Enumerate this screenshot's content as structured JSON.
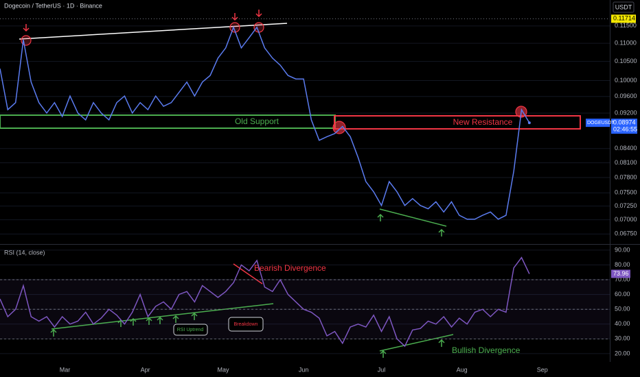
{
  "chart_data": [
    {
      "type": "line",
      "title": "Dogecoin / TetherUS · 1D · Binance",
      "currency": "USDT",
      "log": true,
      "xlim": [
        0,
        235
      ],
      "ylim": [
        0.0659,
        0.1229
      ],
      "yticks": [
        {
          "value": 0.115,
          "label": "0.11500"
        },
        {
          "value": 0.11,
          "label": "0.11000"
        },
        {
          "value": 0.105,
          "label": "0.10500"
        },
        {
          "value": 0.1,
          "label": "0.10000"
        },
        {
          "value": 0.096,
          "label": "0.09600"
        },
        {
          "value": 0.092,
          "label": "0.09200"
        },
        {
          "value": 0.084,
          "label": "0.08400"
        },
        {
          "value": 0.081,
          "label": "0.08100"
        },
        {
          "value": 0.078,
          "label": "0.07800"
        },
        {
          "value": 0.075,
          "label": "0.07500"
        },
        {
          "value": 0.0725,
          "label": "0.07250"
        },
        {
          "value": 0.07,
          "label": "0.07000"
        },
        {
          "value": 0.0675,
          "label": "0.06750"
        }
      ],
      "high_price": 0.11714,
      "countdown": "02:46:55",
      "x": [
        0,
        3,
        6,
        9,
        12,
        15,
        18,
        21,
        24,
        27,
        30,
        33,
        36,
        39,
        42,
        45,
        48,
        51,
        54,
        57,
        60,
        63,
        66,
        69,
        72,
        75,
        78,
        81,
        84,
        87,
        90,
        93,
        96,
        99,
        102,
        105,
        108,
        111,
        114,
        117,
        120,
        123,
        126,
        129,
        132,
        135,
        138,
        141,
        144,
        147,
        150,
        153,
        156,
        159,
        162,
        165,
        168,
        171,
        174,
        177,
        180,
        183,
        186,
        189,
        192,
        195,
        198,
        201,
        204
      ],
      "series": [
        {
          "name": "DOGEUSDT",
          "color": "#5b7cf0",
          "values": [
            0.1031,
            0.0928,
            0.0945,
            0.111,
            0.0996,
            0.0945,
            0.092,
            0.0945,
            0.0912,
            0.0961,
            0.092,
            0.0904,
            0.0945,
            0.092,
            0.0904,
            0.0945,
            0.0961,
            0.092,
            0.0945,
            0.0928,
            0.0961,
            0.0936,
            0.0945,
            0.097,
            0.0996,
            0.0961,
            0.0996,
            0.1013,
            0.1059,
            0.1087,
            0.1146,
            0.1087,
            0.1116,
            0.1146,
            0.1087,
            0.1059,
            0.104,
            0.1013,
            0.1004,
            0.1004,
            0.0904,
            0.0858,
            0.0866,
            0.0873,
            0.0889,
            0.0866,
            0.0821,
            0.0772,
            0.0752,
            0.0726,
            0.0772,
            0.0752,
            0.0726,
            0.0739,
            0.0726,
            0.072,
            0.0733,
            0.0714,
            0.0733,
            0.0708,
            0.0701,
            0.0701,
            0.0708,
            0.0714,
            0.0701,
            0.0708,
            0.0793,
            0.0928,
            0.08974
          ]
        }
      ],
      "annotations": [
        "Old Support",
        "New Resistance"
      ]
    },
    {
      "type": "line",
      "title": "RSI (14, close)",
      "xlim": [
        0,
        235
      ],
      "ylim": [
        14.4,
        93.2
      ],
      "yticks": [
        {
          "value": 90,
          "label": "90.00"
        },
        {
          "value": 80,
          "label": "80.00"
        },
        {
          "value": 70,
          "label": "70.00"
        },
        {
          "value": 60,
          "label": "60.00"
        },
        {
          "value": 50,
          "label": "50.00"
        },
        {
          "value": 40,
          "label": "40.00"
        },
        {
          "value": 30,
          "label": "30.00"
        },
        {
          "value": 20,
          "label": "20.00"
        }
      ],
      "levels": [
        70,
        50,
        30
      ],
      "xticks": [
        {
          "value": 25,
          "label": "Mar"
        },
        {
          "value": 56,
          "label": "Apr"
        },
        {
          "value": 86,
          "label": "May"
        },
        {
          "value": 117,
          "label": "Jun"
        },
        {
          "value": 147,
          "label": "Jul"
        },
        {
          "value": 178,
          "label": "Aug"
        },
        {
          "value": 209,
          "label": "Sep"
        }
      ],
      "x": [
        0,
        3,
        6,
        9,
        12,
        15,
        18,
        21,
        24,
        27,
        30,
        33,
        36,
        39,
        42,
        45,
        48,
        51,
        54,
        57,
        60,
        63,
        66,
        69,
        72,
        75,
        78,
        81,
        84,
        87,
        90,
        93,
        96,
        99,
        102,
        105,
        108,
        111,
        114,
        117,
        120,
        123,
        126,
        129,
        132,
        135,
        138,
        141,
        144,
        147,
        150,
        153,
        156,
        159,
        162,
        165,
        168,
        171,
        174,
        177,
        180,
        183,
        186,
        189,
        192,
        195,
        198,
        201,
        204
      ],
      "series": [
        {
          "color": "#7e57c2",
          "values": [
            57,
            45,
            50,
            66,
            45,
            42,
            45,
            38,
            45,
            40,
            42,
            48,
            40,
            44,
            50,
            46,
            40,
            48,
            60,
            45,
            52,
            55,
            50,
            60,
            62,
            55,
            66,
            62,
            58,
            62,
            68,
            80,
            76,
            83,
            65,
            62,
            70,
            60,
            55,
            50,
            48,
            44,
            32,
            35,
            27,
            38,
            40,
            38,
            46,
            35,
            45,
            30,
            25,
            36,
            37,
            42,
            40,
            45,
            38,
            44,
            40,
            48,
            50,
            45,
            50,
            48,
            78,
            85,
            73.96
          ]
        }
      ],
      "annotations": [
        "Bearish Divergence",
        "Bullish Divergence",
        "RSI Uptrend",
        "Breakdown"
      ]
    }
  ]
}
